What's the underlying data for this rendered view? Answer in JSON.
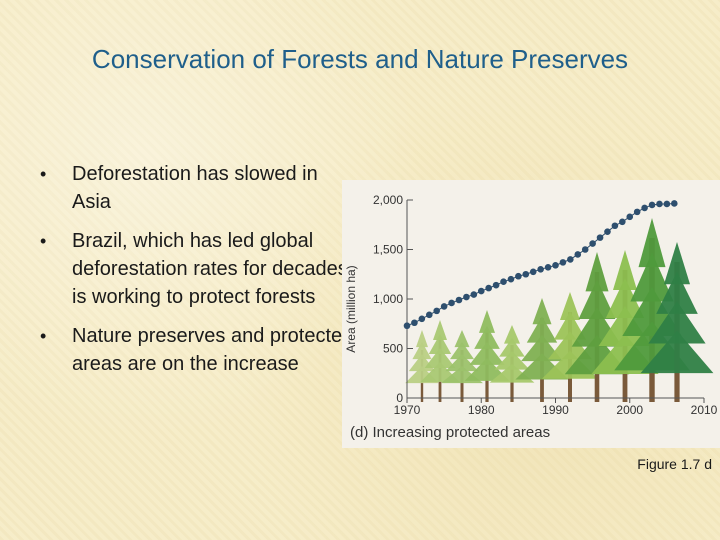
{
  "slide": {
    "title": "Conservation of Forests and Nature Preserves",
    "bullets": [
      "Deforestation has slowed in Asia",
      "Brazil, which has led global deforestation rates for decades, is working to protect forests",
      "Nature preserves and protected areas are on the increase"
    ],
    "bullet_symbol": "•",
    "figure_label": "Figure 1.7 d"
  },
  "chart_data": {
    "type": "scatter",
    "caption": "(d) Increasing protected areas",
    "ylabel": "Area (million ha)",
    "xlabel": "",
    "xlim": [
      1970,
      2010
    ],
    "ylim": [
      0,
      2000
    ],
    "x_ticks": [
      1970,
      1980,
      1990,
      2000,
      2010
    ],
    "y_ticks": [
      0,
      500,
      1000,
      1500,
      2000
    ],
    "x_tick_labels": [
      "1970",
      "1980",
      "1990",
      "2000",
      "2010"
    ],
    "y_tick_labels": [
      "0",
      "500",
      "1,000",
      "1,500",
      "2,000"
    ],
    "grid": false,
    "marker_color": "#2e4f6e",
    "series": [
      {
        "x": [
          1970,
          1971,
          1972,
          1973,
          1974,
          1975,
          1976,
          1977,
          1978,
          1979,
          1980,
          1981,
          1982,
          1983,
          1984,
          1985,
          1986,
          1987,
          1988,
          1989,
          1990,
          1991,
          1992,
          1993,
          1994,
          1995,
          1996,
          1997,
          1998,
          1999,
          2000,
          2001,
          2002,
          2003,
          2004,
          2005,
          2006
        ],
        "y": [
          730,
          760,
          800,
          840,
          880,
          925,
          960,
          990,
          1020,
          1045,
          1080,
          1110,
          1140,
          1175,
          1200,
          1230,
          1250,
          1275,
          1300,
          1320,
          1340,
          1370,
          1400,
          1450,
          1500,
          1560,
          1620,
          1680,
          1740,
          1780,
          1830,
          1880,
          1920,
          1950,
          1960,
          1960,
          1965
        ]
      }
    ]
  }
}
